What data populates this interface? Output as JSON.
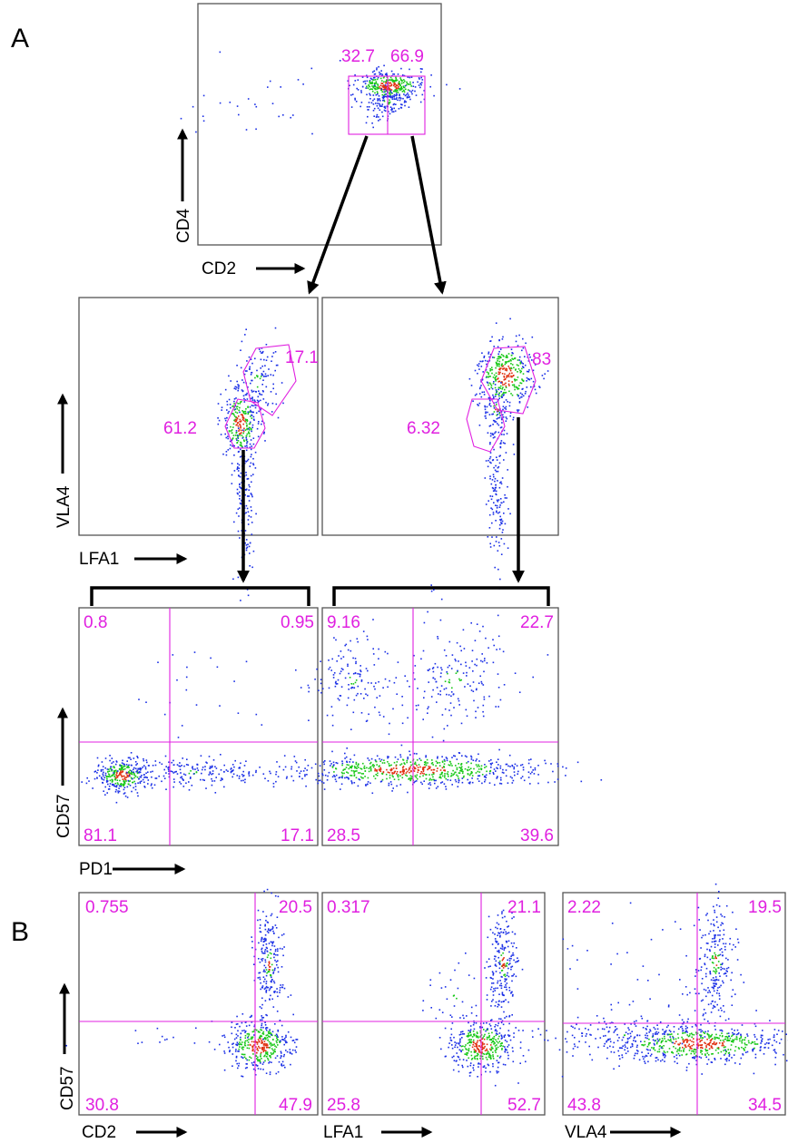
{
  "panels": {
    "a": "A",
    "b": "B"
  },
  "colors": {
    "gate": "#e020e0",
    "density_low": "#1a2fe6",
    "density_mid": "#18c818",
    "density_high": "#e03010"
  },
  "top_plot": {
    "xlabel": "CD2",
    "ylabel": "CD4",
    "gate_left": "32.7",
    "gate_right": "66.9"
  },
  "middle_plots": {
    "xlabel": "LFA1",
    "ylabel": "VLA4",
    "left": {
      "gate_high": "17.1",
      "gate_low": "61.2"
    },
    "right": {
      "gate_high": "83",
      "gate_low": "6.32"
    }
  },
  "quadrant_plots_a": {
    "xlabel": "PD1",
    "ylabel": "CD57",
    "left": {
      "ul": "0.8",
      "ur": "0.95",
      "ll": "81.1",
      "lr": "17.1"
    },
    "right": {
      "ul": "9.16",
      "ur": "22.7",
      "ll": "28.5",
      "lr": "39.6"
    }
  },
  "quadrant_plots_b": {
    "ylabel": "CD57",
    "cd2": {
      "xlabel": "CD2",
      "ul": "0.755",
      "ur": "20.5",
      "ll": "30.8",
      "lr": "47.9"
    },
    "lfa1": {
      "xlabel": "LFA1",
      "ul": "0.317",
      "ur": "21.1",
      "ll": "25.8",
      "lr": "52.7"
    },
    "vla4": {
      "xlabel": "VLA4",
      "ul": "2.22",
      "ur": "19.5",
      "ll": "43.8",
      "lr": "34.5"
    }
  }
}
